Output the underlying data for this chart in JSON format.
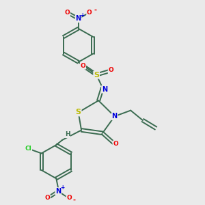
{
  "background_color": "#eaeaea",
  "bond_color": "#3a6b50",
  "atom_colors": {
    "N": "#0000dd",
    "O": "#ee0000",
    "S": "#bbbb00",
    "Cl": "#22cc22",
    "H": "#3a6b50",
    "C": "#3a6b50",
    "default": "#3a6b50"
  },
  "figsize": [
    3.0,
    3.0
  ],
  "dpi": 100
}
